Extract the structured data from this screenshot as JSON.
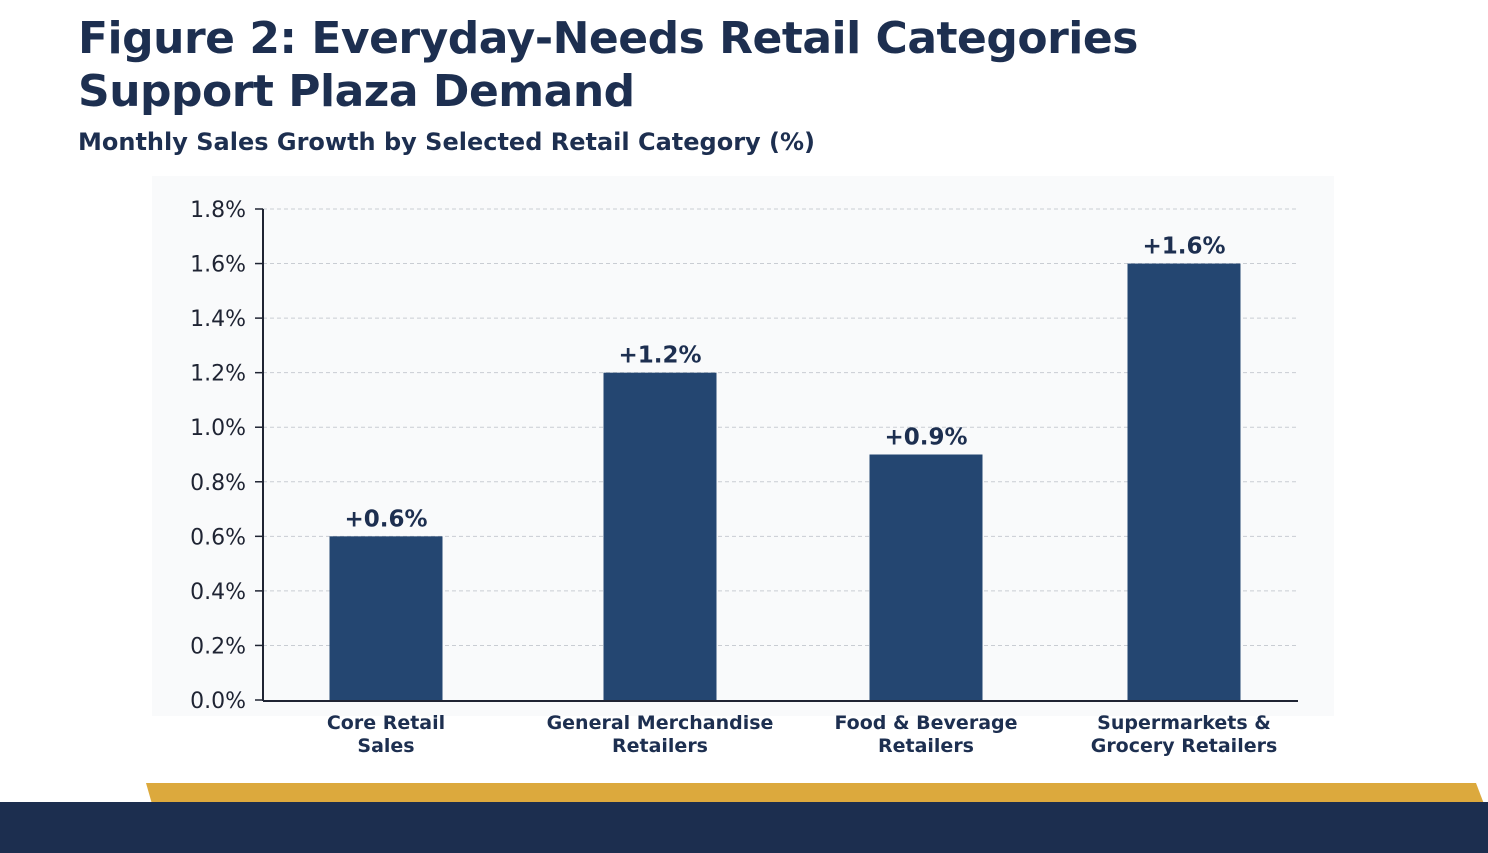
{
  "figure": {
    "title_line1": "Figure 2: Everyday-Needs Retail Categories",
    "title_line2": "Support Plaza Demand",
    "subtitle": "Monthly Sales Growth by Selected Retail Category (%)"
  },
  "colors": {
    "bar": "#244671",
    "title": "#1d2f50",
    "footer_navy": "#1c2e4f",
    "footer_gold": "#dca93d",
    "grid": "#c9cdd3",
    "axis": "#1f2433"
  },
  "chart_data": {
    "type": "bar",
    "title": "Monthly Sales Growth by Selected Retail Category (%)",
    "xlabel": "",
    "ylabel": "",
    "ylim": [
      0,
      1.8
    ],
    "yticks": [
      0.0,
      0.2,
      0.4,
      0.6,
      0.8,
      1.0,
      1.2,
      1.4,
      1.6,
      1.8
    ],
    "ytick_labels": [
      "0.0%",
      "0.2%",
      "0.4%",
      "0.6%",
      "0.8%",
      "1.0%",
      "1.2%",
      "1.4%",
      "1.6%",
      "1.8%"
    ],
    "grid": "horizontal dashed",
    "categories": [
      [
        "Core Retail",
        "Sales"
      ],
      [
        "General Merchandise",
        "Retailers"
      ],
      [
        "Food & Beverage",
        "Retailers"
      ],
      [
        "Supermarkets &",
        "Grocery Retailers"
      ]
    ],
    "values": [
      0.6,
      1.2,
      0.9,
      1.6
    ],
    "data_labels": [
      "+0.6%",
      "+1.2%",
      "+0.9%",
      "+1.6%"
    ]
  }
}
